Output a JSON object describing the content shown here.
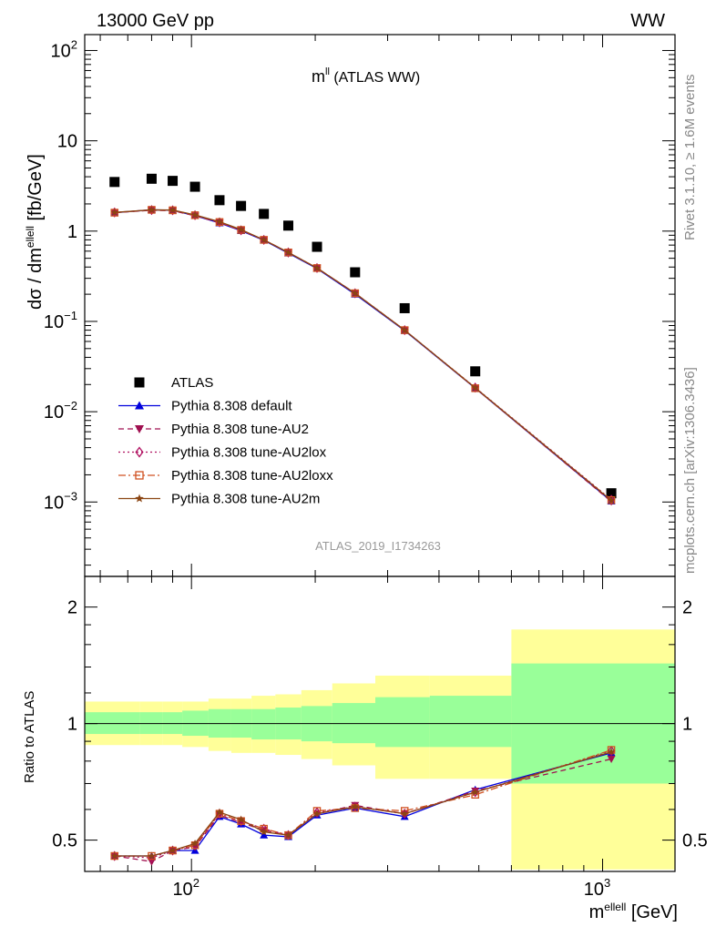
{
  "header": {
    "left": "13000 GeV pp",
    "right": "WW"
  },
  "plot_title": {
    "main": "m",
    "sup": "ll",
    "rest": " (ATLAS WW)"
  },
  "watermark": "ATLAS_2019_I1734263",
  "side_top": "Rivet 3.1.10, ≥ 1.6M events",
  "side_bottom": "mcplots.cern.ch [arXiv:1306.3436]",
  "ylabel_main": {
    "pre": "dσ / dm",
    "sup": "ellell",
    "post": " [fb/GeV]"
  },
  "ylabel_ratio": "Ratio to ATLAS",
  "xlabel": {
    "pre": "m",
    "sup": "ellell",
    "post": " [GeV]"
  },
  "tick_labels": {
    "main_y": [
      {
        "base": "10",
        "exp": "2",
        "value": 100
      },
      {
        "base": "10",
        "exp": "",
        "value": 10
      },
      {
        "base": "1",
        "exp": "",
        "value": 1
      },
      {
        "base": "10",
        "exp": "−1",
        "value": 0.1
      },
      {
        "base": "10",
        "exp": "−2",
        "value": 0.01
      },
      {
        "base": "10",
        "exp": "−3",
        "value": 0.001
      }
    ],
    "ratio_y": [
      "2",
      "1",
      "0.5"
    ],
    "ratio_y_values": [
      2,
      1,
      0.5
    ],
    "x": [
      {
        "base": "10",
        "exp": "2",
        "value": 100
      },
      {
        "base": "10",
        "exp": "3",
        "value": 1000
      }
    ]
  },
  "colors": {
    "data": "#000000",
    "default": "#0000dd",
    "au2": "#a01050",
    "au2lox": "#b01060",
    "au2loxx": "#d05020",
    "au2m": "#8b4513",
    "band_inner": "#99ff99",
    "band_outer": "#ffff99"
  },
  "chart_data": [
    {
      "type": "scatter",
      "title": "m^ll (ATLAS WW)",
      "xlabel": "m^ellell [GeV]",
      "ylabel": "dσ / dm^ellell [fb/GeV]",
      "xscale": "log",
      "yscale": "log",
      "xlim": [
        55,
        1500
      ],
      "ylim": [
        0.00015,
        150
      ],
      "legend_position": "lower-left",
      "bin_edges": [
        55,
        75,
        85,
        95,
        110,
        125,
        140,
        160,
        185,
        220,
        280,
        380,
        600,
        1500
      ],
      "x": [
        65,
        80,
        90,
        102,
        117,
        132,
        150,
        172,
        202,
        250,
        330,
        490,
        1050
      ],
      "series": [
        {
          "name": "ATLAS",
          "key": "data",
          "marker": "square",
          "values": [
            3.5,
            3.8,
            3.6,
            3.1,
            2.2,
            1.9,
            1.55,
            1.15,
            0.67,
            0.35,
            0.14,
            0.028,
            0.00125
          ]
        },
        {
          "name": "Pythia 8.308 default",
          "key": "default",
          "marker": "triangle-up",
          "dash": "",
          "values": [
            1.6,
            1.72,
            1.7,
            1.48,
            1.23,
            1.01,
            0.79,
            0.57,
            0.385,
            0.2,
            0.079,
            0.0182,
            0.00102
          ]
        },
        {
          "name": "Pythia 8.308 tune-AU2",
          "key": "au2",
          "marker": "triangle-down",
          "dash": "6,4",
          "values": [
            1.6,
            1.7,
            1.68,
            1.48,
            1.24,
            1.02,
            0.8,
            0.58,
            0.39,
            0.205,
            0.08,
            0.0183,
            0.00101
          ]
        },
        {
          "name": "Pythia 8.308 tune-AU2lox",
          "key": "au2lox",
          "marker": "diamond-open",
          "dash": "2,3",
          "values": [
            1.61,
            1.71,
            1.7,
            1.5,
            1.25,
            1.02,
            0.8,
            0.58,
            0.39,
            0.205,
            0.08,
            0.0185,
            0.00106
          ]
        },
        {
          "name": "Pythia 8.308 tune-AU2loxx",
          "key": "au2loxx",
          "marker": "square-open",
          "dash": "8,3,2,3",
          "values": [
            1.6,
            1.72,
            1.7,
            1.5,
            1.26,
            1.03,
            0.8,
            0.58,
            0.39,
            0.205,
            0.08,
            0.0182,
            0.00105
          ]
        },
        {
          "name": "Pythia 8.308 tune-AU2m",
          "key": "au2m",
          "marker": "star",
          "dash": "",
          "values": [
            1.61,
            1.72,
            1.71,
            1.51,
            1.27,
            1.04,
            0.8,
            0.58,
            0.39,
            0.205,
            0.08,
            0.0184,
            0.00104
          ]
        }
      ]
    },
    {
      "type": "scatter",
      "ylabel": "Ratio to ATLAS",
      "xlabel": "m^ellell [GeV]",
      "xscale": "log",
      "yscale": "log",
      "xlim": [
        55,
        1500
      ],
      "ylim": [
        0.415,
        2.4
      ],
      "bin_edges": [
        55,
        75,
        85,
        95,
        110,
        125,
        140,
        160,
        185,
        220,
        280,
        380,
        600,
        1500
      ],
      "x": [
        65,
        80,
        90,
        102,
        117,
        132,
        150,
        172,
        202,
        250,
        330,
        490,
        1050
      ],
      "band_inner": [
        [
          0.94,
          1.07
        ],
        [
          0.94,
          1.07
        ],
        [
          0.94,
          1.07
        ],
        [
          0.93,
          1.08
        ],
        [
          0.92,
          1.09
        ],
        [
          0.92,
          1.09
        ],
        [
          0.91,
          1.09
        ],
        [
          0.91,
          1.1
        ],
        [
          0.9,
          1.11
        ],
        [
          0.89,
          1.13
        ],
        [
          0.87,
          1.17
        ],
        [
          0.87,
          1.18
        ],
        [
          0.7,
          1.43
        ]
      ],
      "band_outer": [
        [
          0.88,
          1.14
        ],
        [
          0.88,
          1.14
        ],
        [
          0.88,
          1.14
        ],
        [
          0.87,
          1.14
        ],
        [
          0.85,
          1.16
        ],
        [
          0.84,
          1.16
        ],
        [
          0.84,
          1.18
        ],
        [
          0.83,
          1.19
        ],
        [
          0.81,
          1.22
        ],
        [
          0.78,
          1.27
        ],
        [
          0.72,
          1.33
        ],
        [
          0.72,
          1.33
        ],
        [
          0.42,
          1.75
        ]
      ],
      "series": [
        {
          "name": "Pythia 8.308 default",
          "key": "default",
          "marker": "triangle-up",
          "dash": "",
          "values": [
            0.455,
            0.455,
            0.47,
            0.47,
            0.575,
            0.55,
            0.515,
            0.51,
            0.58,
            0.605,
            0.575,
            0.675,
            0.84
          ]
        },
        {
          "name": "Pythia 8.308 tune-AU2",
          "key": "au2",
          "marker": "triangle-down",
          "dash": "6,4",
          "values": [
            0.455,
            0.44,
            0.47,
            0.48,
            0.58,
            0.555,
            0.53,
            0.515,
            0.585,
            0.615,
            0.585,
            0.67,
            0.81
          ]
        },
        {
          "name": "Pythia 8.308 tune-AU2lox",
          "key": "au2lox",
          "marker": "diamond-open",
          "dash": "2,3",
          "values": [
            0.455,
            0.45,
            0.47,
            0.485,
            0.585,
            0.56,
            0.535,
            0.515,
            0.59,
            0.61,
            0.585,
            0.665,
            0.85
          ]
        },
        {
          "name": "Pythia 8.308 tune-AU2loxx",
          "key": "au2loxx",
          "marker": "square-open",
          "dash": "8,3,2,3",
          "values": [
            0.455,
            0.455,
            0.47,
            0.485,
            0.585,
            0.56,
            0.535,
            0.515,
            0.595,
            0.605,
            0.595,
            0.655,
            0.855
          ]
        },
        {
          "name": "Pythia 8.308 tune-AU2m",
          "key": "au2m",
          "marker": "star",
          "dash": "",
          "values": [
            0.455,
            0.455,
            0.47,
            0.49,
            0.59,
            0.565,
            0.525,
            0.515,
            0.585,
            0.61,
            0.585,
            0.665,
            0.845
          ]
        }
      ]
    }
  ]
}
